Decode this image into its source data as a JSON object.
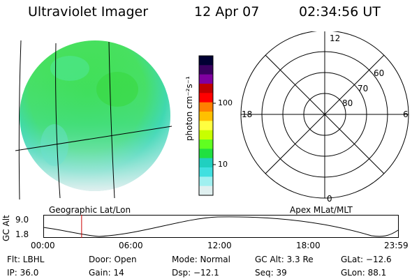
{
  "header": {
    "title": "Ultraviolet Imager",
    "date": "12 Apr 07",
    "time": "02:34:56 UT"
  },
  "image_panel": {
    "caption": "Geographic Lat/Lon"
  },
  "colorbar": {
    "unit_label": "photon cm⁻²s⁻¹",
    "tick_labels": [
      "100",
      "10"
    ],
    "colors": [
      "#000033",
      "#3a0060",
      "#8000a0",
      "#c00000",
      "#ff0000",
      "#ff8000",
      "#ffc000",
      "#ffff40",
      "#c8ff00",
      "#60ff20",
      "#20e040",
      "#20d0c0",
      "#40e0e0",
      "#a0f0f0",
      "#e0f0f0"
    ]
  },
  "polar_plot": {
    "caption": "Apex MLat/MLT",
    "mlt_labels": {
      "top": "12",
      "left": "18",
      "right": "6",
      "bottom": "0"
    },
    "ring_labels": [
      "60",
      "70",
      "80"
    ]
  },
  "altitude_strip": {
    "ylabel": "GC Alt",
    "y_ticks": [
      "9.0",
      "1.8"
    ],
    "time_ticks": [
      "00:00",
      "06:00",
      "12:00",
      "18:00",
      "23:59"
    ],
    "marker_color": "#cc0000",
    "current_time_fraction": 0.108
  },
  "info": {
    "flt": "Flt: LBHL",
    "ip": "IP: 36.0",
    "door": "Door: Open",
    "gain": "Gain: 14",
    "mode": "Mode: Normal",
    "dsp": "Dsp:  −12.1",
    "gcalt": "GC Alt: 3.3 Re",
    "seq": "Seq: 39",
    "glat": "GLat: −12.6",
    "glon": "GLon:  88.1"
  }
}
